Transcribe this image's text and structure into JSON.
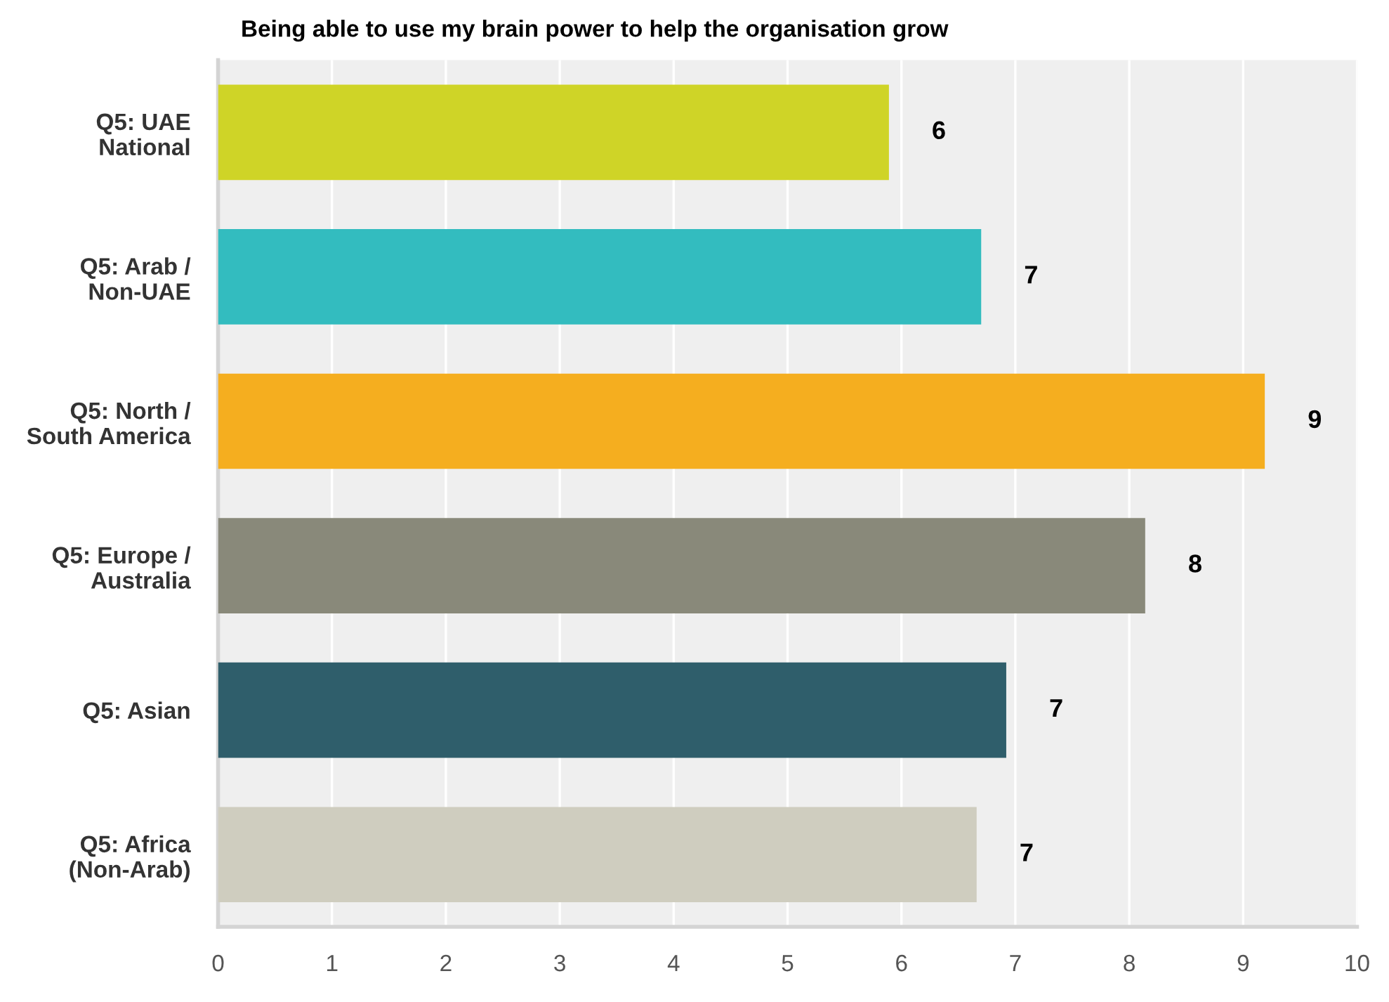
{
  "chart_data": {
    "type": "bar",
    "orientation": "horizontal",
    "title": "Being able to use my brain power to help the organisation grow",
    "categories": [
      "Q5: UAE\nNational",
      "Q5: Arab /\nNon-UAE",
      "Q5: North /\nSouth America",
      "Q5: Europe /\nAustralia",
      "Q5: Asian",
      "Q5: Africa\n(Non-Arab)"
    ],
    "values": [
      5.89,
      6.7,
      9.19,
      8.14,
      6.92,
      6.66
    ],
    "value_labels": [
      "6",
      "7",
      "9",
      "8",
      "7",
      "7"
    ],
    "colors": [
      "#cfd427",
      "#33bcbf",
      "#f5ae1f",
      "#89897a",
      "#2f5e6b",
      "#cfcdbf"
    ],
    "xlim": [
      0,
      10
    ],
    "xticks": [
      0,
      1,
      2,
      3,
      4,
      5,
      6,
      7,
      8,
      9,
      10
    ],
    "grid": "x"
  }
}
